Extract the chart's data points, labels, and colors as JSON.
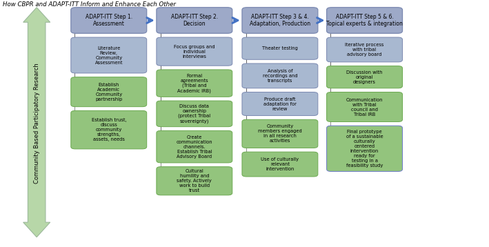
{
  "title": "How CBPR and ADAPT-ITT Inform and Enhance Each Other",
  "arrow_label": "Community Based Participatory Research",
  "col_headers": [
    "ADAPT-ITT Step 1.\nAssessment",
    "ADAPT-ITT Step 2.\nDecision",
    "ADAPT-ITT Step 3 & 4.\nAdaptation, Production",
    "ADAPT-ITT Step 5 & 6.\nTopical experts & integration"
  ],
  "header_color": "#9DA9C8",
  "header_border": "#7A88B0",
  "blue_box_color": "#A8B8D0",
  "blue_box_border": "#7A88B0",
  "green_box_color": "#93C47D",
  "green_box_border": "#6AA84F",
  "arrow_face": "#B7D7A8",
  "arrow_edge": "#9BB89A",
  "columns": [
    {
      "items": [
        {
          "text": "Literature\nReview,\nCommunity\nAssessment",
          "color": "blue"
        },
        {
          "text": "Establish\nAcademic\nCommunity\npartnership",
          "color": "green"
        },
        {
          "text": "Establish trust,\ndiscuss\ncommunity\nstrengths,\nassets, needs",
          "color": "green"
        }
      ]
    },
    {
      "items": [
        {
          "text": "Focus groups and\nindividual\ninterviews",
          "color": "blue"
        },
        {
          "text": "Formal\nagreements\n(Tribal and\nAcademic IRB)",
          "color": "green"
        },
        {
          "text": "Discuss data\nownership\n(protect Tribal\nsovereignty)",
          "color": "green"
        },
        {
          "text": "Create\ncommunication\nchannels.\nEstablish Tribal\nAdvisory Board",
          "color": "green"
        },
        {
          "text": "Cultural\nhumility and\nsafety. Actively\nwork to build\ntrust",
          "color": "green"
        }
      ]
    },
    {
      "items": [
        {
          "text": "Theater testing",
          "color": "blue"
        },
        {
          "text": "Analysis of\nrecordings and\ntranscripts",
          "color": "blue"
        },
        {
          "text": "Produce draft\nadaptation for\nreview",
          "color": "blue"
        },
        {
          "text": "Community\nmembers engaged\nin all research\nactivities",
          "color": "green"
        },
        {
          "text": "Use of culturally\nrelevant\nintervention",
          "color": "green"
        }
      ]
    },
    {
      "items": [
        {
          "text": "Iterative process\nwith tribal\nadvisory board",
          "color": "blue"
        },
        {
          "text": "Discussion with\noriginal\ndesigners",
          "color": "green"
        },
        {
          "text": "Communication\nwith Tribal\ncouncil and\nTribal IRB",
          "color": "green"
        },
        {
          "text": "Final prototype\nof a sustainable\nculturally\ncentered\nintervention\nready for\ntesting in a\nfeasibility study",
          "color": "blue_border_green"
        }
      ]
    }
  ]
}
